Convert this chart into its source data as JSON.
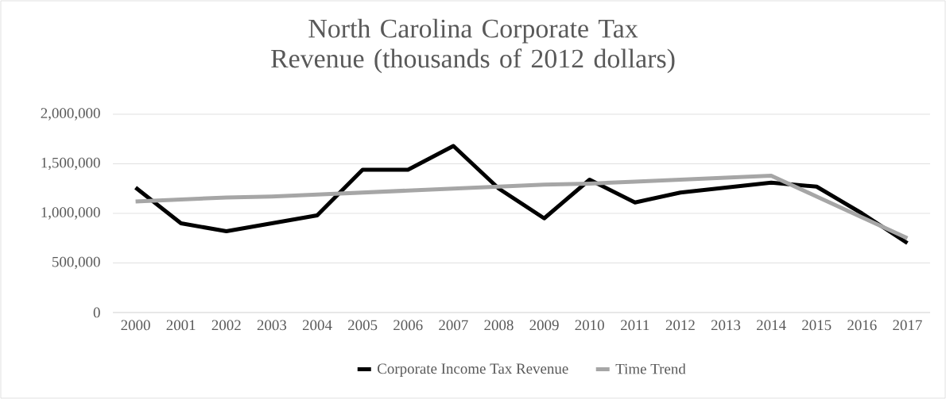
{
  "chart_data": {
    "type": "line",
    "title": "North Carolina Corporate Tax Revenue (thousands of 2012 dollars)",
    "categories": [
      "2000",
      "2001",
      "2002",
      "2003",
      "2004",
      "2005",
      "2006",
      "2007",
      "2008",
      "2009",
      "2010",
      "2011",
      "2012",
      "2013",
      "2014",
      "2015",
      "2016",
      "2017"
    ],
    "series": [
      {
        "name": "Corporate Income Tax Revenue",
        "color": "#000000",
        "values": [
          1260000,
          900000,
          820000,
          900000,
          980000,
          1440000,
          1440000,
          1680000,
          1250000,
          950000,
          1340000,
          1110000,
          1210000,
          1260000,
          1310000,
          1270000,
          1000000,
          700000
        ]
      },
      {
        "name": "Time Trend",
        "color": "#a6a6a6",
        "values": [
          1120000,
          1140000,
          1160000,
          1170000,
          1190000,
          1210000,
          1230000,
          1250000,
          1270000,
          1290000,
          1300000,
          1320000,
          1340000,
          1360000,
          1380000,
          1170000,
          960000,
          750000
        ]
      }
    ],
    "ylim": [
      0,
      2000000
    ],
    "yticks": [
      {
        "value": 0,
        "label": "0"
      },
      {
        "value": 500000,
        "label": "500,000"
      },
      {
        "value": 1000000,
        "label": "1,000,000"
      },
      {
        "value": 1500000,
        "label": "1,500,000"
      },
      {
        "value": 2000000,
        "label": "2,000,000"
      }
    ],
    "grid": "y",
    "legend": "bottom",
    "marker": "none",
    "line_style": "solid"
  }
}
